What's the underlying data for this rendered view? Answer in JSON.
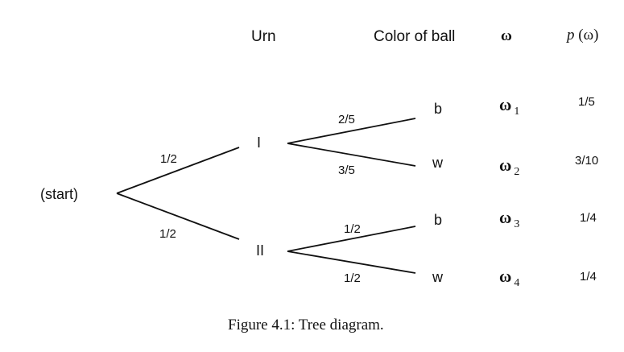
{
  "headers": {
    "urn": "Urn",
    "color": "Color of ball",
    "omega": "ω",
    "p_italic": "p",
    "p_arg": " (ω)"
  },
  "nodes": {
    "start": "(start)",
    "urn1": "I",
    "urn2": "II",
    "leaves": [
      "b",
      "w",
      "b",
      "w"
    ]
  },
  "edge_probs": {
    "start_to_I": "1/2",
    "start_to_II": "1/2",
    "I_to_b": "2/5",
    "I_to_w": "3/5",
    "II_to_b": "1/2",
    "II_to_w": "1/2"
  },
  "outcomes": [
    {
      "symbol": "ω",
      "sub": "1",
      "p": "1/5"
    },
    {
      "symbol": "ω",
      "sub": "2",
      "p": "3/10"
    },
    {
      "symbol": "ω",
      "sub": "3",
      "p": "1/4"
    },
    {
      "symbol": "ω",
      "sub": "4",
      "p": "1/4"
    }
  ],
  "caption": "Figure 4.1: Tree diagram."
}
